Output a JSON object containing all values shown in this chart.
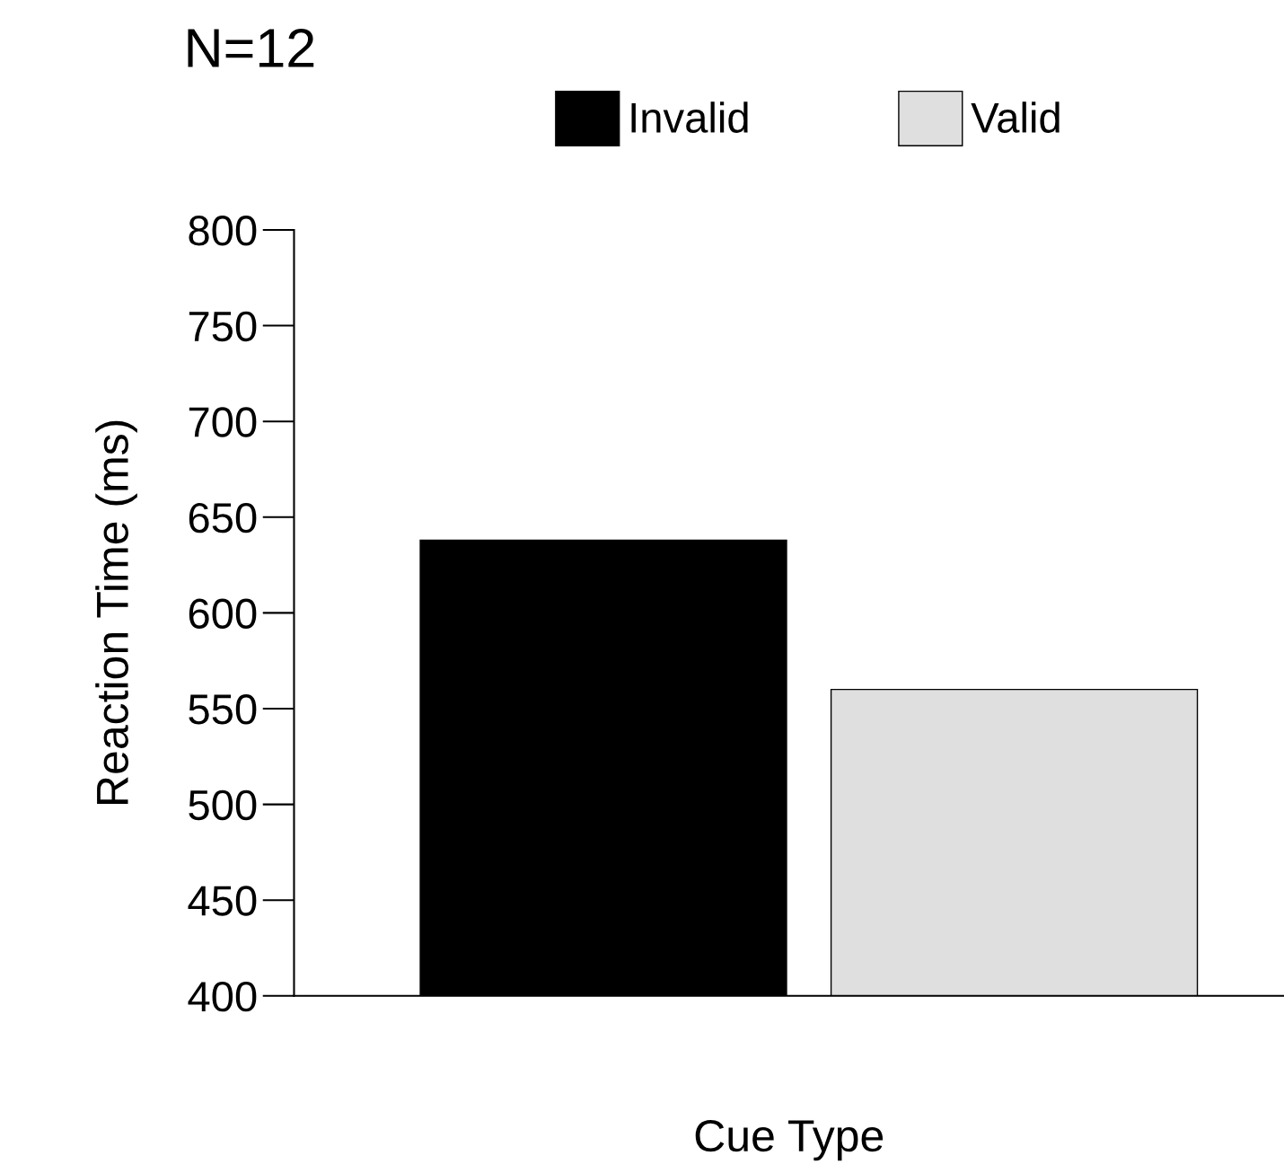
{
  "chart_data": {
    "type": "bar",
    "title": "N=12",
    "xlabel": "Cue Type",
    "ylabel": "Reaction Time (ms)",
    "categories": [
      null
    ],
    "series": [
      {
        "name": "Invalid",
        "color": "#000000",
        "values": [
          638
        ]
      },
      {
        "name": "Valid",
        "color": "#dfdfdf",
        "values": [
          560
        ]
      }
    ],
    "ylim": [
      400,
      800
    ],
    "yticks": [
      400,
      450,
      500,
      550,
      600,
      650,
      700,
      750,
      800
    ],
    "grid": false,
    "legend": "top"
  }
}
